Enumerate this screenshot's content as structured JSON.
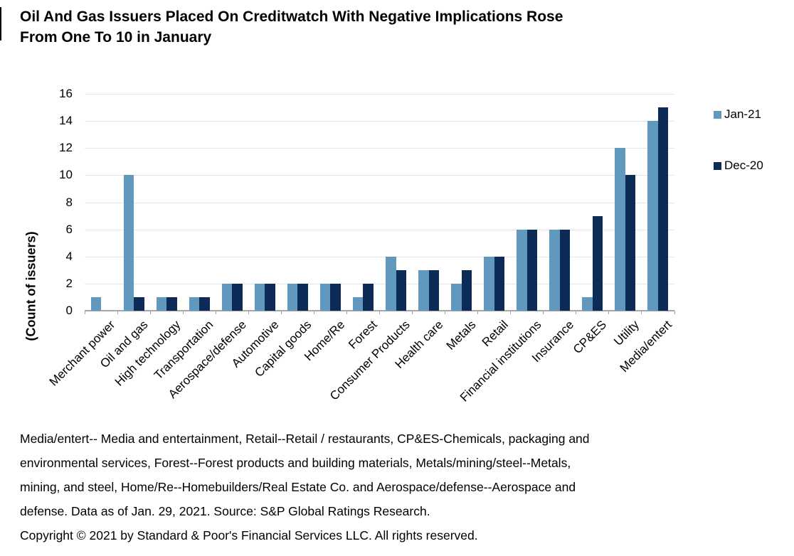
{
  "panel": {
    "title_line1": "Oil And Gas Issuers Placed On Creditwatch With Negative Implications Rose",
    "title_line2": "From One To 10 in January"
  },
  "chart_data": {
    "type": "bar",
    "title": "Oil And Gas Issuers Placed On Creditwatch With Negative Implications Rose From One To 10 in January",
    "xlabel": "",
    "ylabel": "(Count of issuers)",
    "ylim": [
      0,
      16
    ],
    "ytick_step": 2,
    "grid": true,
    "legend_position": "right",
    "categories": [
      "Merchant power",
      "Oil and gas",
      "High technology",
      "Transportation",
      "Aerospace/defense",
      "Automotive",
      "Capital goods",
      "Home/Re",
      "Forest",
      "Consumer Products",
      "Health care",
      "Metals",
      "Retail",
      "Financial institutions",
      "Insurance",
      "CP&ES",
      "Utility",
      "Media/entert"
    ],
    "series": [
      {
        "name": "Jan-21",
        "color": "#6199be",
        "values": [
          1,
          10,
          1,
          1,
          2,
          2,
          2,
          2,
          1,
          4,
          3,
          2,
          4,
          6,
          6,
          1,
          12,
          14
        ]
      },
      {
        "name": "Dec-20",
        "color": "#0d2b57",
        "values": [
          0,
          1,
          1,
          1,
          2,
          2,
          2,
          2,
          2,
          3,
          3,
          3,
          4,
          6,
          6,
          7,
          10,
          15
        ]
      }
    ]
  },
  "colors": {
    "gridline": "#e5e5e5",
    "axis": "#a6a6a6",
    "text": "#000000"
  },
  "footnotes": {
    "lines": [
      "Media/entert-- Media and entertainment, Retail--Retail / restaurants, CP&ES-Chemicals, packaging and",
      "environmental services, Forest--Forest products and building materials, Metals/mining/steel--Metals,",
      "mining, and steel, Home/Re--Homebuilders/Real Estate Co. and Aerospace/defense--Aerospace and",
      "defense. Data as of Jan. 29, 2021. Source: S&P Global Ratings Research.",
      "Copyright © 2021 by Standard & Poor's Financial Services LLC. All rights reserved."
    ]
  }
}
